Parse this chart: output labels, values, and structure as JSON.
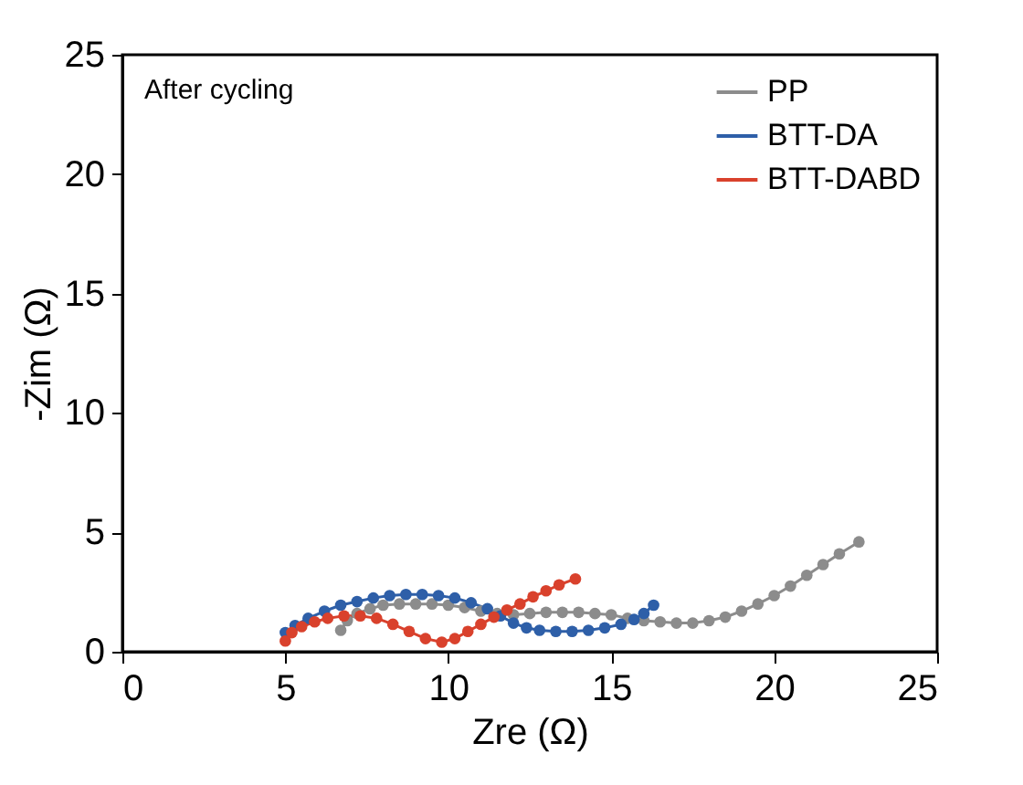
{
  "chart_data": {
    "type": "line",
    "xlabel": "Zre (Ω)",
    "ylabel": "-Zim (Ω)",
    "annotations": [
      "After cycling"
    ],
    "xlim": [
      0,
      25
    ],
    "ylim": [
      0,
      25
    ],
    "xticks": [
      0,
      5,
      10,
      15,
      20,
      25
    ],
    "yticks": [
      0,
      5,
      10,
      15,
      20,
      25
    ],
    "grid": false,
    "legend": "top right",
    "marker": "circle",
    "line_style": "solid",
    "series": [
      {
        "name": "PP",
        "color": "#8c8c8c",
        "x": [
          6.7,
          6.9,
          7.2,
          7.6,
          8.0,
          8.5,
          9.0,
          9.5,
          10.0,
          10.5,
          11.0,
          11.5,
          12.0,
          12.5,
          13.0,
          13.5,
          14.0,
          14.5,
          15.0,
          15.5,
          16.0,
          16.5,
          17.0,
          17.5,
          18.0,
          18.5,
          19.0,
          19.5,
          20.0,
          20.5,
          21.0,
          21.5,
          22.0,
          22.6
        ],
        "values": [
          0.9,
          1.3,
          1.6,
          1.8,
          1.95,
          2.0,
          2.0,
          2.0,
          1.95,
          1.85,
          1.7,
          1.6,
          1.55,
          1.6,
          1.65,
          1.65,
          1.65,
          1.6,
          1.55,
          1.4,
          1.3,
          1.25,
          1.2,
          1.2,
          1.3,
          1.45,
          1.7,
          2.0,
          2.35,
          2.75,
          3.2,
          3.65,
          4.1,
          4.6
        ]
      },
      {
        "name": "BTT-DA",
        "color": "#2e5fa8",
        "x": [
          5.0,
          5.3,
          5.7,
          6.2,
          6.7,
          7.2,
          7.7,
          8.2,
          8.7,
          9.2,
          9.7,
          10.2,
          10.7,
          11.2,
          11.6,
          12.0,
          12.4,
          12.8,
          13.3,
          13.8,
          14.3,
          14.8,
          15.3,
          15.7,
          16.0,
          16.3
        ],
        "values": [
          0.8,
          1.1,
          1.4,
          1.7,
          1.95,
          2.1,
          2.25,
          2.35,
          2.4,
          2.4,
          2.35,
          2.25,
          2.05,
          1.8,
          1.5,
          1.2,
          1.0,
          0.9,
          0.85,
          0.85,
          0.9,
          1.0,
          1.15,
          1.35,
          1.6,
          1.95
        ]
      },
      {
        "name": "BTT-DABD",
        "color": "#d9412c",
        "x": [
          5.0,
          5.2,
          5.5,
          5.9,
          6.3,
          6.8,
          7.3,
          7.8,
          8.3,
          8.8,
          9.3,
          9.8,
          10.2,
          10.6,
          11.0,
          11.4,
          11.8,
          12.2,
          12.6,
          13.0,
          13.4,
          13.9
        ],
        "values": [
          0.45,
          0.8,
          1.05,
          1.25,
          1.4,
          1.5,
          1.5,
          1.4,
          1.15,
          0.85,
          0.55,
          0.4,
          0.55,
          0.85,
          1.15,
          1.45,
          1.75,
          2.0,
          2.3,
          2.55,
          2.8,
          3.05
        ]
      }
    ]
  }
}
